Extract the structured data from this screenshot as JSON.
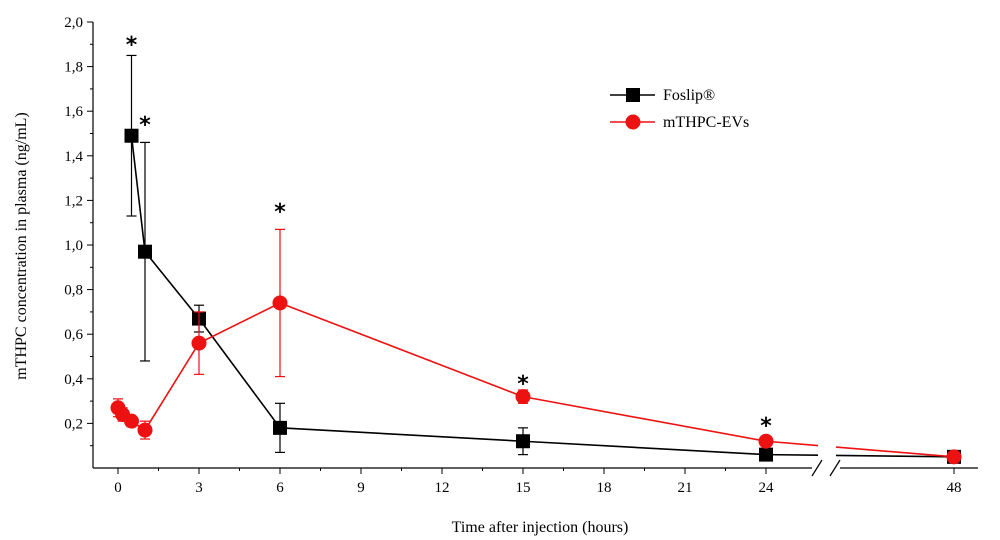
{
  "chart_data": {
    "type": "line",
    "xlabel": "Time after injection (hours)",
    "ylabel": "mTHPC concentration in plasma (ng/mL)",
    "xlim": [
      -1,
      50
    ],
    "ylim": [
      0,
      2.0
    ],
    "x_ticks": [
      "0",
      "3",
      "6",
      "9",
      "12",
      "15",
      "18",
      "21",
      "24",
      "48"
    ],
    "y_ticks": [
      "0,2",
      "0,4",
      "0,6",
      "0,8",
      "1,0",
      "1,2",
      "1,4",
      "1,6",
      "1,8",
      "2,0"
    ],
    "axis_break": "between 24 and 48",
    "legend": {
      "position": "top-right"
    },
    "series": [
      {
        "name": "Foslip®",
        "color": "#000000",
        "marker": "square",
        "x": [
          0.5,
          1,
          3,
          6,
          15,
          24,
          48
        ],
        "y": [
          1.49,
          0.97,
          0.67,
          0.18,
          0.12,
          0.06,
          0.05
        ],
        "err": [
          0.36,
          0.49,
          0.06,
          0.11,
          0.06,
          0.02,
          0.02
        ]
      },
      {
        "name": "mTHPC-EVs",
        "color": "#ee1111",
        "marker": "circle",
        "x": [
          0,
          0.17,
          0.5,
          1,
          3,
          6,
          15,
          24,
          48
        ],
        "y": [
          0.27,
          0.24,
          0.21,
          0.17,
          0.56,
          0.74,
          0.32,
          0.12,
          0.05
        ],
        "err": [
          0.04,
          0.03,
          0.02,
          0.04,
          0.14,
          0.33,
          0.03,
          0.02,
          0.01
        ]
      }
    ],
    "annotations": [
      {
        "text": "*",
        "x": 0.5,
        "y": 1.92
      },
      {
        "text": "*",
        "x": 1.0,
        "y": 1.56
      },
      {
        "text": "*",
        "x": 6.0,
        "y": 1.17
      },
      {
        "text": "*",
        "x": 15.0,
        "y": 0.4
      },
      {
        "text": "*",
        "x": 24.0,
        "y": 0.21
      }
    ]
  }
}
